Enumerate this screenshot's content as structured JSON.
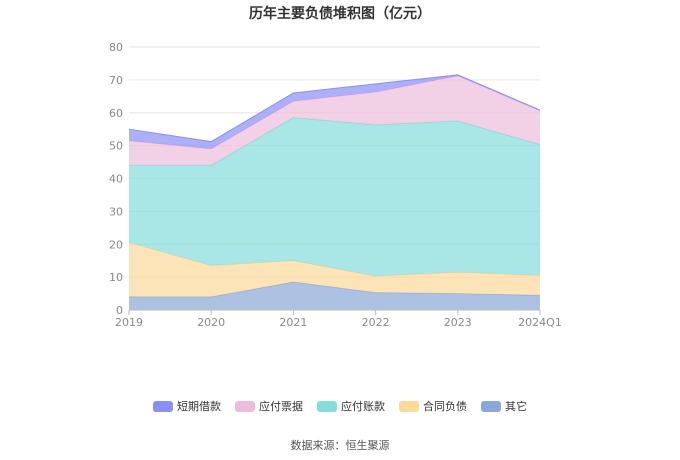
{
  "chart_data": {
    "type": "area",
    "stacked": true,
    "title": "历年主要负债堆积图（亿元）",
    "categories": [
      "2019",
      "2020",
      "2021",
      "2022",
      "2023",
      "2024Q1"
    ],
    "ylim": [
      0,
      80
    ],
    "yticks": [
      "0",
      "10",
      "20",
      "30",
      "40",
      "50",
      "60",
      "70",
      "80"
    ],
    "grid": true,
    "legend_position": "bottom",
    "series": [
      {
        "name": "其它",
        "color": "#8aa8d6",
        "values": [
          4.0,
          4.0,
          8.5,
          5.3,
          5.0,
          4.5
        ]
      },
      {
        "name": "合同负债",
        "color": "#fcd99a",
        "values": [
          16.5,
          9.5,
          6.5,
          5.0,
          6.5,
          6.0
        ]
      },
      {
        "name": "应付账款",
        "color": "#85dcdc",
        "values": [
          23.5,
          30.5,
          43.5,
          46.0,
          46.0,
          39.8
        ]
      },
      {
        "name": "应付票据",
        "color": "#edbcdc",
        "values": [
          7.5,
          5.0,
          5.0,
          10.0,
          13.7,
          10.3
        ]
      },
      {
        "name": "短期借款",
        "color": "#8a8ef5",
        "values": [
          3.5,
          2.2,
          2.5,
          2.5,
          0.3,
          0.2
        ]
      }
    ],
    "legend_order": [
      "短期借款",
      "应付票据",
      "应付账款",
      "合同负债",
      "其它"
    ]
  },
  "source": "数据来源：恒生聚源"
}
